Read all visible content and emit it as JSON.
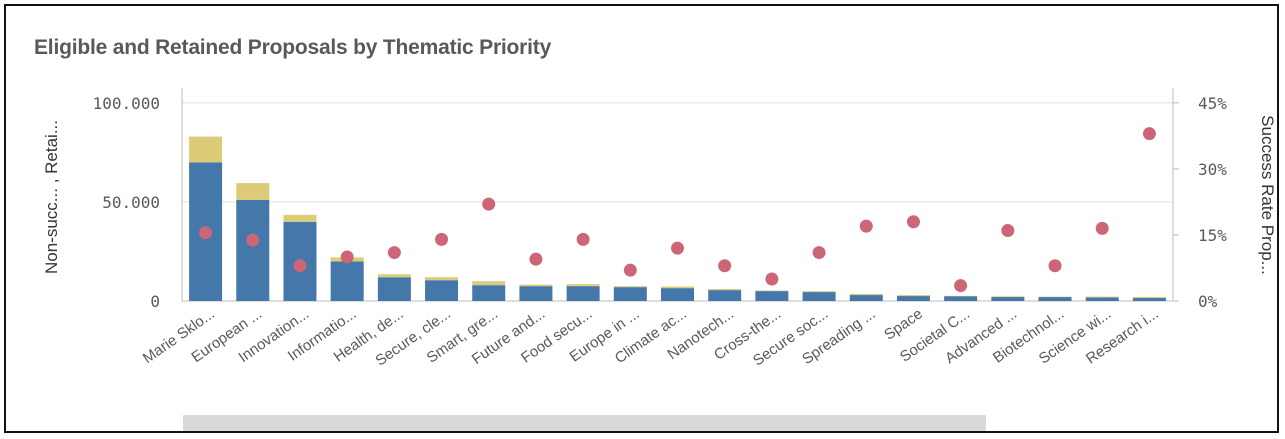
{
  "colors": {
    "non_successful": "#4477aa",
    "retained": "#ddcc77",
    "success_rate": "#cc6677",
    "axis_text": "#595959",
    "grid": "#e0e0e0"
  },
  "chart_data": {
    "type": "bar",
    "title": "Eligible and Retained Proposals by Thematic Priority",
    "ylabel": "Non-succ... , Retai...",
    "y2label": "Success Rate Prop...",
    "ylim": [
      0,
      107500
    ],
    "y2lim": [
      0,
      0.48375
    ],
    "y_ticks": [
      0,
      50000,
      100000
    ],
    "y_tick_labels": [
      "0",
      "50.000",
      "100.000"
    ],
    "y2_ticks": [
      0,
      0.15,
      0.3,
      0.45
    ],
    "y2_tick_labels": [
      "0%",
      "15%",
      "30%",
      "45%"
    ],
    "grid": true,
    "stacked": true,
    "categories": [
      "Marie Sklo...",
      "European ...",
      "Innovation...",
      "Informatio...",
      "Health, de...",
      "Secure, cle...",
      "Smart, gre...",
      "Future and...",
      "Food secu...",
      "Europe in ...",
      "Climate ac...",
      "Nanotech...",
      "Cross-the...",
      "Secure soc...",
      "Spreading ...",
      "Space",
      "Societal C...",
      "Advanced ...",
      "Biotechnol...",
      "Science wi...",
      "Research i..."
    ],
    "series": [
      {
        "type": "bar",
        "values": [
          70000,
          51000,
          40000,
          20000,
          12000,
          10500,
          8000,
          7500,
          7500,
          7000,
          6500,
          5500,
          5000,
          4500,
          3000,
          2500,
          2500,
          2000,
          2000,
          1800,
          1500
        ]
      },
      {
        "type": "bar",
        "values": [
          13000,
          8500,
          3500,
          2000,
          1500,
          1500,
          2000,
          800,
          1000,
          500,
          800,
          500,
          300,
          500,
          600,
          500,
          100,
          400,
          200,
          400,
          500
        ]
      },
      {
        "type": "scatter",
        "axis": "right",
        "values": [
          0.155,
          0.138,
          0.08,
          0.1,
          0.11,
          0.14,
          0.22,
          0.095,
          0.14,
          0.07,
          0.12,
          0.08,
          0.05,
          0.11,
          0.17,
          0.18,
          0.035,
          0.16,
          0.08,
          0.165,
          0.38
        ]
      }
    ]
  },
  "scrollbar": {
    "visible": true
  }
}
